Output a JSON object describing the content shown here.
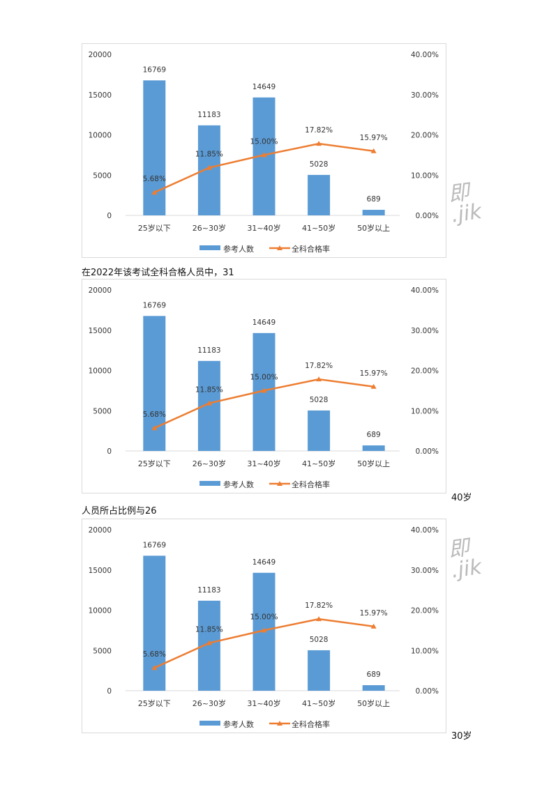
{
  "chart_data": [
    {
      "type": "bar+line",
      "categories": [
        "25岁以下",
        "26~30岁",
        "31~40岁",
        "41~50岁",
        "50岁以上"
      ],
      "series": [
        {
          "name": "参考人数",
          "type": "bar",
          "axis": "left",
          "color": "#5b9bd5",
          "values": [
            16769,
            11183,
            14649,
            5028,
            689
          ],
          "labels": [
            "16769",
            "11183",
            "14649",
            "5028",
            "689"
          ]
        },
        {
          "name": "全科合格率",
          "type": "line",
          "axis": "right",
          "color": "#ed7d31",
          "values": [
            5.68,
            11.85,
            15.0,
            17.82,
            15.97
          ],
          "labels": [
            "5.68%",
            "11.85%",
            "15.00%",
            "17.82%",
            "15.97%"
          ]
        }
      ],
      "left_axis": {
        "ticks": [
          "0",
          "5000",
          "10000",
          "15000",
          "20000"
        ],
        "range": [
          0,
          20000
        ]
      },
      "right_axis": {
        "ticks": [
          "0.00%",
          "10.00%",
          "20.00%",
          "30.00%",
          "40.00%"
        ],
        "range": [
          0,
          40
        ]
      },
      "legend_position": "bottom",
      "grid": false
    },
    {
      "type": "bar+line",
      "categories": [
        "25岁以下",
        "26~30岁",
        "31~40岁",
        "41~50岁",
        "50岁以上"
      ],
      "series": [
        {
          "name": "参考人数",
          "type": "bar",
          "axis": "left",
          "color": "#5b9bd5",
          "values": [
            16769,
            11183,
            14649,
            5028,
            689
          ],
          "labels": [
            "16769",
            "11183",
            "14649",
            "5028",
            "689"
          ]
        },
        {
          "name": "全科合格率",
          "type": "line",
          "axis": "right",
          "color": "#ed7d31",
          "values": [
            5.68,
            11.85,
            15.0,
            17.82,
            15.97
          ],
          "labels": [
            "5.68%",
            "11.85%",
            "15.00%",
            "17.82%",
            "15.97%"
          ]
        }
      ],
      "left_axis": {
        "ticks": [
          "0",
          "5000",
          "10000",
          "15000",
          "20000"
        ],
        "range": [
          0,
          20000
        ]
      },
      "right_axis": {
        "ticks": [
          "0.00%",
          "10.00%",
          "20.00%",
          "30.00%",
          "40.00%"
        ],
        "range": [
          0,
          40
        ]
      },
      "legend_position": "bottom",
      "grid": false
    },
    {
      "type": "bar+line",
      "categories": [
        "25岁以下",
        "26~30岁",
        "31~40岁",
        "41~50岁",
        "50岁以上"
      ],
      "series": [
        {
          "name": "参考人数",
          "type": "bar",
          "axis": "left",
          "color": "#5b9bd5",
          "values": [
            16769,
            11183,
            14649,
            5028,
            689
          ],
          "labels": [
            "16769",
            "11183",
            "14649",
            "5028",
            "689"
          ]
        },
        {
          "name": "全科合格率",
          "type": "line",
          "axis": "right",
          "color": "#ed7d31",
          "values": [
            5.68,
            11.85,
            15.0,
            17.82,
            15.97
          ],
          "labels": [
            "5.68%",
            "11.85%",
            "15.00%",
            "17.82%",
            "15.97%"
          ]
        }
      ],
      "left_axis": {
        "ticks": [
          "0",
          "5000",
          "10000",
          "15000",
          "20000"
        ],
        "range": [
          0,
          20000
        ]
      },
      "right_axis": {
        "ticks": [
          "0.00%",
          "10.00%",
          "20.00%",
          "30.00%",
          "40.00%"
        ],
        "range": [
          0,
          40
        ]
      },
      "legend_position": "bottom",
      "grid": false
    }
  ],
  "text": {
    "para1": "在2022年该考试全科合格人员中，31",
    "side1": "40岁",
    "para2": "人员所占比例与26",
    "side2": "30岁",
    "watermark_line1": "即",
    "watermark_line2": ".jik"
  }
}
